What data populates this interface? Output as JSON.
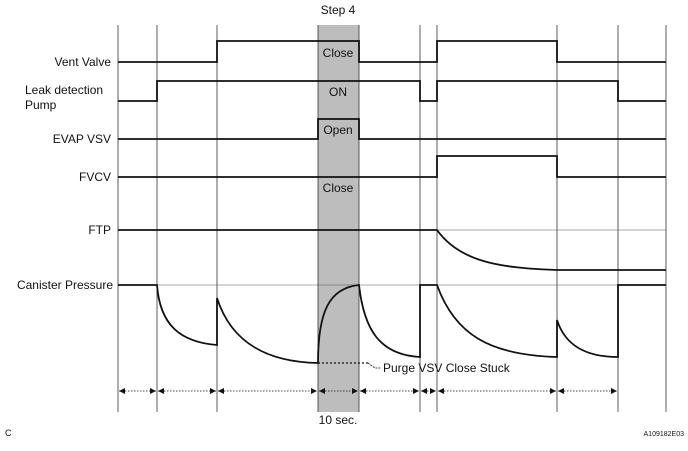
{
  "step_label": "Step 4",
  "signals": {
    "vent_valve": "Vent Valve",
    "leak_pump_line1": "Leak detection",
    "leak_pump_line2": "Pump",
    "evap_vsv": "EVAP VSV",
    "fvcv": "FVCV",
    "ftp": "FTP",
    "canister_pressure": "Canister Pressure"
  },
  "state_labels": {
    "vent_close": "Close",
    "pump_on": "ON",
    "evap_open": "Open",
    "fvcv_close": "Close"
  },
  "annotation": "Purge VSV Close Stuck",
  "duration_label": "10 sec.",
  "corner_letter": "C",
  "figure_code": "A109182E03",
  "colors": {
    "shade": "#bdbdbd",
    "line": "#111111"
  }
}
